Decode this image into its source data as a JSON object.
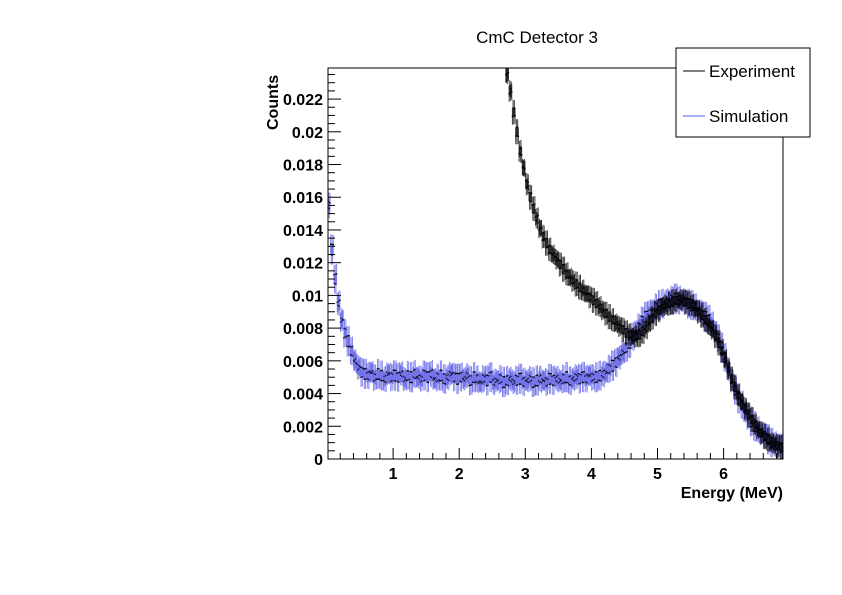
{
  "chart_data": {
    "type": "scatter",
    "title": "CmC Detector 3",
    "xlabel": "Energy (MeV)",
    "ylabel": "Counts",
    "xlim": [
      0.02,
      6.9
    ],
    "ylim": [
      0,
      0.0239
    ],
    "grid": false,
    "legend_position": "top-right",
    "x_ticks": [
      1,
      2,
      3,
      4,
      5,
      6
    ],
    "x_tick_labels": [
      "1",
      "2",
      "3",
      "4",
      "5",
      "6"
    ],
    "y_ticks": [
      0,
      0.002,
      0.004,
      0.006,
      0.008,
      0.01,
      0.012,
      0.014,
      0.016,
      0.018,
      0.02,
      0.022
    ],
    "y_tick_labels": [
      "0",
      "0.002",
      "0.004",
      "0.006",
      "0.008",
      "0.01",
      "0.012",
      "0.014",
      "0.016",
      "0.018",
      "0.02",
      "0.022"
    ],
    "bin_width": 0.05,
    "series": [
      {
        "name": "Experiment",
        "color": "#000000",
        "x_start": 2.725,
        "error": 0.0005,
        "values": [
          0.0235,
          0.0225,
          0.0212,
          0.02,
          0.0188,
          0.0178,
          0.0168,
          0.016,
          0.0153,
          0.0147,
          0.0141,
          0.0136,
          0.0132,
          0.0128,
          0.0125,
          0.0122,
          0.0119,
          0.0116,
          0.0113,
          0.0111,
          0.0109,
          0.0107,
          0.0105,
          0.0103,
          0.0101,
          0.0099,
          0.0097,
          0.0095,
          0.0093,
          0.0091,
          0.0089,
          0.0087,
          0.0085,
          0.0083,
          0.0081,
          0.0079,
          0.0077,
          0.0076,
          0.0075,
          0.0075,
          0.0076,
          0.0078,
          0.008,
          0.0083,
          0.0086,
          0.0089,
          0.0091,
          0.0093,
          0.0094,
          0.0095,
          0.0096,
          0.0097,
          0.0097,
          0.0097,
          0.0096,
          0.0095,
          0.0094,
          0.0092,
          0.009,
          0.0088,
          0.0085,
          0.0082,
          0.0079,
          0.0075,
          0.0071,
          0.0066,
          0.0061,
          0.0055,
          0.0049,
          0.0044,
          0.0039,
          0.0035,
          0.0031,
          0.0027,
          0.0024,
          0.0021,
          0.0018,
          0.0016,
          0.0014,
          0.0012,
          0.001,
          0.0009,
          0.0008,
          0.0007
        ]
      },
      {
        "name": "Simulation",
        "color": "#5b5be6",
        "x_start": 0.025,
        "error": 0.0006,
        "values": [
          0.0155,
          0.0128,
          0.011,
          0.0095,
          0.0085,
          0.0077,
          0.0072,
          0.0066,
          0.006,
          0.0056,
          0.0053,
          0.0052,
          0.0051,
          0.0053,
          0.005,
          0.0052,
          0.0051,
          0.0049,
          0.0052,
          0.005,
          0.0051,
          0.005,
          0.0052,
          0.0049,
          0.0051,
          0.005,
          0.0052,
          0.005,
          0.0049,
          0.0051,
          0.005,
          0.0052,
          0.0049,
          0.005,
          0.0051,
          0.0049,
          0.005,
          0.0052,
          0.005,
          0.0049,
          0.005,
          0.0049,
          0.0051,
          0.0048,
          0.005,
          0.0049,
          0.0047,
          0.0049,
          0.0048,
          0.005,
          0.0047,
          0.0048,
          0.0049,
          0.0047,
          0.0048,
          0.0049,
          0.0047,
          0.0048,
          0.0049,
          0.0047,
          0.0048,
          0.0049,
          0.0047,
          0.0048,
          0.0049,
          0.0048,
          0.0047,
          0.0049,
          0.0048,
          0.0049,
          0.0048,
          0.0049,
          0.005,
          0.0048,
          0.0049,
          0.005,
          0.0049,
          0.005,
          0.0049,
          0.0051,
          0.005,
          0.005,
          0.0051,
          0.0052,
          0.0053,
          0.0055,
          0.0057,
          0.0059,
          0.0062,
          0.0065,
          0.0068,
          0.0071,
          0.0075,
          0.0078,
          0.0081,
          0.0084,
          0.0087,
          0.0089,
          0.0091,
          0.0093,
          0.0094,
          0.0095,
          0.0096,
          0.0097,
          0.0097,
          0.0098,
          0.0097,
          0.0097,
          0.0096,
          0.0095,
          0.0094,
          0.0093,
          0.0091,
          0.0089,
          0.0087,
          0.0085,
          0.0082,
          0.0078,
          0.0074,
          0.0068,
          0.0062,
          0.0055,
          0.0048,
          0.0042,
          0.0037,
          0.0033,
          0.0029,
          0.0026,
          0.0023,
          0.002,
          0.0018,
          0.0016,
          0.0014,
          0.0012,
          0.001,
          0.0009,
          0.0008,
          0.0007
        ]
      }
    ]
  }
}
